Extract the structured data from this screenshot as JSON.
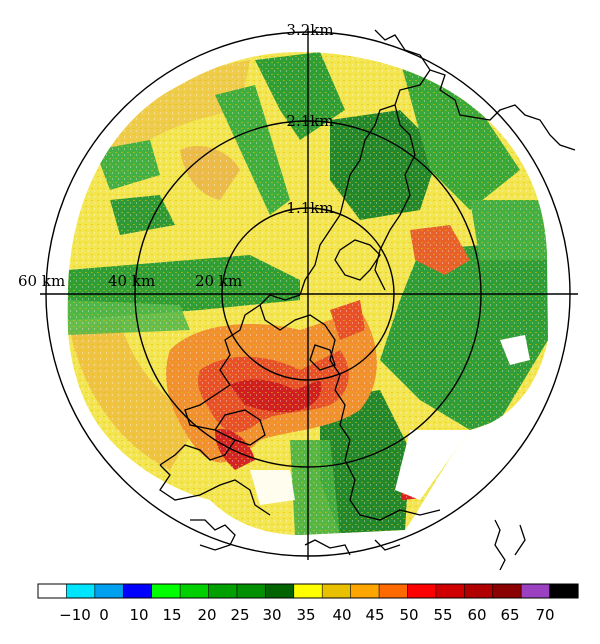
{
  "radar": {
    "height_labels": [
      "3.2km",
      "2.1km",
      "1.1km"
    ],
    "range_labels": [
      "60 km",
      "40 km",
      "20 km"
    ]
  },
  "colorbar": {
    "colors": [
      "#ffffff",
      "#00e5ff",
      "#00a0f0",
      "#0000ff",
      "#00ff00",
      "#00d000",
      "#00a000",
      "#009000",
      "#006400",
      "#ffff00",
      "#e8c000",
      "#ffa500",
      "#ff6a00",
      "#ff0000",
      "#d00000",
      "#b00000",
      "#8b0000",
      "#9a40c0",
      "#000000"
    ],
    "tick_labels": [
      "−10",
      "0",
      "10",
      "15",
      "20",
      "25",
      "30",
      "35",
      "40",
      "45",
      "50",
      "55",
      "60",
      "65",
      "70"
    ]
  }
}
